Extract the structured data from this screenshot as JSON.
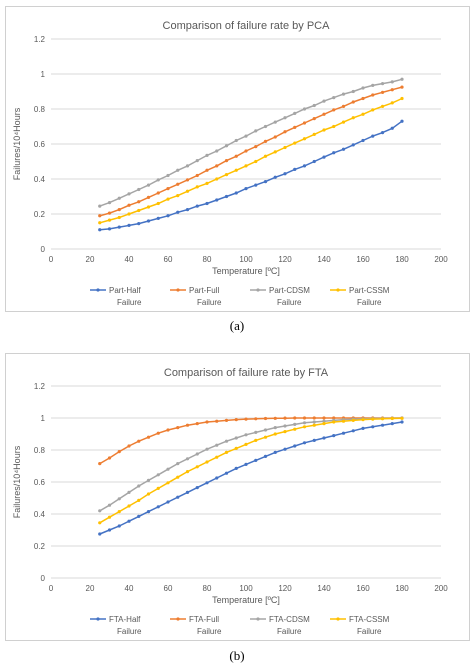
{
  "chart_data": [
    {
      "type": "line",
      "title": "Comparison of failure rate by PCA",
      "xlabel": "Temperature [ºC]",
      "ylabel": "Failures/10⁴Hours",
      "xlim": [
        0,
        200
      ],
      "ylim": [
        0,
        1.2
      ],
      "xticks": [
        0,
        20,
        40,
        60,
        80,
        100,
        120,
        140,
        160,
        180,
        200
      ],
      "yticks": [
        0,
        0.2,
        0.4,
        0.6,
        0.8,
        1,
        1.2
      ],
      "grid": true,
      "legend_position": "bottom",
      "x": [
        25,
        30,
        35,
        40,
        45,
        50,
        55,
        60,
        65,
        70,
        75,
        80,
        85,
        90,
        95,
        100,
        105,
        110,
        115,
        120,
        125,
        130,
        135,
        140,
        145,
        150,
        155,
        160,
        165,
        170,
        175,
        180
      ],
      "series": [
        {
          "name": "Part-Half Failure",
          "color": "#4472C4",
          "values": [
            0.11,
            0.115,
            0.125,
            0.135,
            0.145,
            0.16,
            0.175,
            0.19,
            0.21,
            0.225,
            0.245,
            0.26,
            0.28,
            0.3,
            0.32,
            0.345,
            0.365,
            0.385,
            0.41,
            0.43,
            0.455,
            0.475,
            0.5,
            0.525,
            0.55,
            0.57,
            0.595,
            0.62,
            0.645,
            0.665,
            0.69,
            0.73
          ]
        },
        {
          "name": "Part-Full Failure",
          "color": "#ED7D31",
          "values": [
            0.19,
            0.205,
            0.225,
            0.25,
            0.27,
            0.295,
            0.32,
            0.345,
            0.37,
            0.395,
            0.42,
            0.45,
            0.475,
            0.505,
            0.53,
            0.56,
            0.585,
            0.615,
            0.64,
            0.67,
            0.695,
            0.72,
            0.745,
            0.77,
            0.795,
            0.815,
            0.84,
            0.86,
            0.88,
            0.895,
            0.91,
            0.925
          ]
        },
        {
          "name": "Part-CDSM Failure",
          "color": "#A5A5A5",
          "values": [
            0.245,
            0.265,
            0.29,
            0.315,
            0.34,
            0.365,
            0.395,
            0.42,
            0.45,
            0.475,
            0.505,
            0.535,
            0.56,
            0.59,
            0.62,
            0.645,
            0.675,
            0.7,
            0.725,
            0.75,
            0.775,
            0.8,
            0.82,
            0.845,
            0.865,
            0.885,
            0.9,
            0.92,
            0.935,
            0.945,
            0.955,
            0.97
          ]
        },
        {
          "name": "Part-CSSM Failure",
          "color": "#FFC000",
          "values": [
            0.15,
            0.165,
            0.18,
            0.2,
            0.22,
            0.24,
            0.26,
            0.285,
            0.305,
            0.33,
            0.355,
            0.375,
            0.4,
            0.425,
            0.45,
            0.475,
            0.5,
            0.53,
            0.555,
            0.58,
            0.605,
            0.63,
            0.655,
            0.68,
            0.7,
            0.725,
            0.75,
            0.77,
            0.795,
            0.815,
            0.835,
            0.86
          ]
        }
      ]
    },
    {
      "type": "line",
      "title": "Comparison of failure rate by FTA",
      "xlabel": "Temperature [ºC]",
      "ylabel": "Failures/10⁴Hours",
      "xlim": [
        0,
        200
      ],
      "ylim": [
        0,
        1.2
      ],
      "xticks": [
        0,
        20,
        40,
        60,
        80,
        100,
        120,
        140,
        160,
        180,
        200
      ],
      "yticks": [
        0,
        0.2,
        0.4,
        0.6,
        0.8,
        1,
        1.2
      ],
      "grid": true,
      "legend_position": "bottom",
      "x": [
        25,
        30,
        35,
        40,
        45,
        50,
        55,
        60,
        65,
        70,
        75,
        80,
        85,
        90,
        95,
        100,
        105,
        110,
        115,
        120,
        125,
        130,
        135,
        140,
        145,
        150,
        155,
        160,
        165,
        170,
        175,
        180
      ],
      "series": [
        {
          "name": "FTA-Half Failure",
          "color": "#4472C4",
          "values": [
            0.275,
            0.3,
            0.325,
            0.355,
            0.385,
            0.415,
            0.445,
            0.475,
            0.505,
            0.535,
            0.565,
            0.595,
            0.625,
            0.655,
            0.685,
            0.71,
            0.735,
            0.76,
            0.785,
            0.805,
            0.825,
            0.845,
            0.86,
            0.875,
            0.89,
            0.905,
            0.92,
            0.935,
            0.945,
            0.955,
            0.965,
            0.975
          ]
        },
        {
          "name": "FTA-Full Failure",
          "color": "#ED7D31",
          "values": [
            0.715,
            0.75,
            0.79,
            0.825,
            0.855,
            0.88,
            0.905,
            0.925,
            0.94,
            0.955,
            0.965,
            0.975,
            0.98,
            0.985,
            0.99,
            0.993,
            0.995,
            0.997,
            0.998,
            0.999,
            1.0,
            1.0,
            1.0,
            1.0,
            1.0,
            1.0,
            1.0,
            1.0,
            1.0,
            1.0,
            1.0,
            1.0
          ]
        },
        {
          "name": "FTA-CDSM Failure",
          "color": "#A5A5A5",
          "values": [
            0.42,
            0.455,
            0.495,
            0.535,
            0.575,
            0.61,
            0.645,
            0.68,
            0.715,
            0.745,
            0.775,
            0.805,
            0.83,
            0.855,
            0.875,
            0.895,
            0.91,
            0.925,
            0.94,
            0.95,
            0.96,
            0.97,
            0.975,
            0.98,
            0.985,
            0.99,
            0.993,
            0.995,
            0.997,
            0.998,
            0.999,
            1.0
          ]
        },
        {
          "name": "FTA-CSSM Failure",
          "color": "#FFC000",
          "values": [
            0.345,
            0.38,
            0.415,
            0.45,
            0.485,
            0.525,
            0.56,
            0.595,
            0.63,
            0.665,
            0.695,
            0.725,
            0.755,
            0.785,
            0.81,
            0.835,
            0.86,
            0.88,
            0.9,
            0.915,
            0.93,
            0.945,
            0.955,
            0.965,
            0.975,
            0.98,
            0.985,
            0.99,
            0.993,
            0.995,
            0.997,
            0.998
          ]
        }
      ]
    }
  ],
  "captions": [
    "(a)",
    "(b)"
  ]
}
